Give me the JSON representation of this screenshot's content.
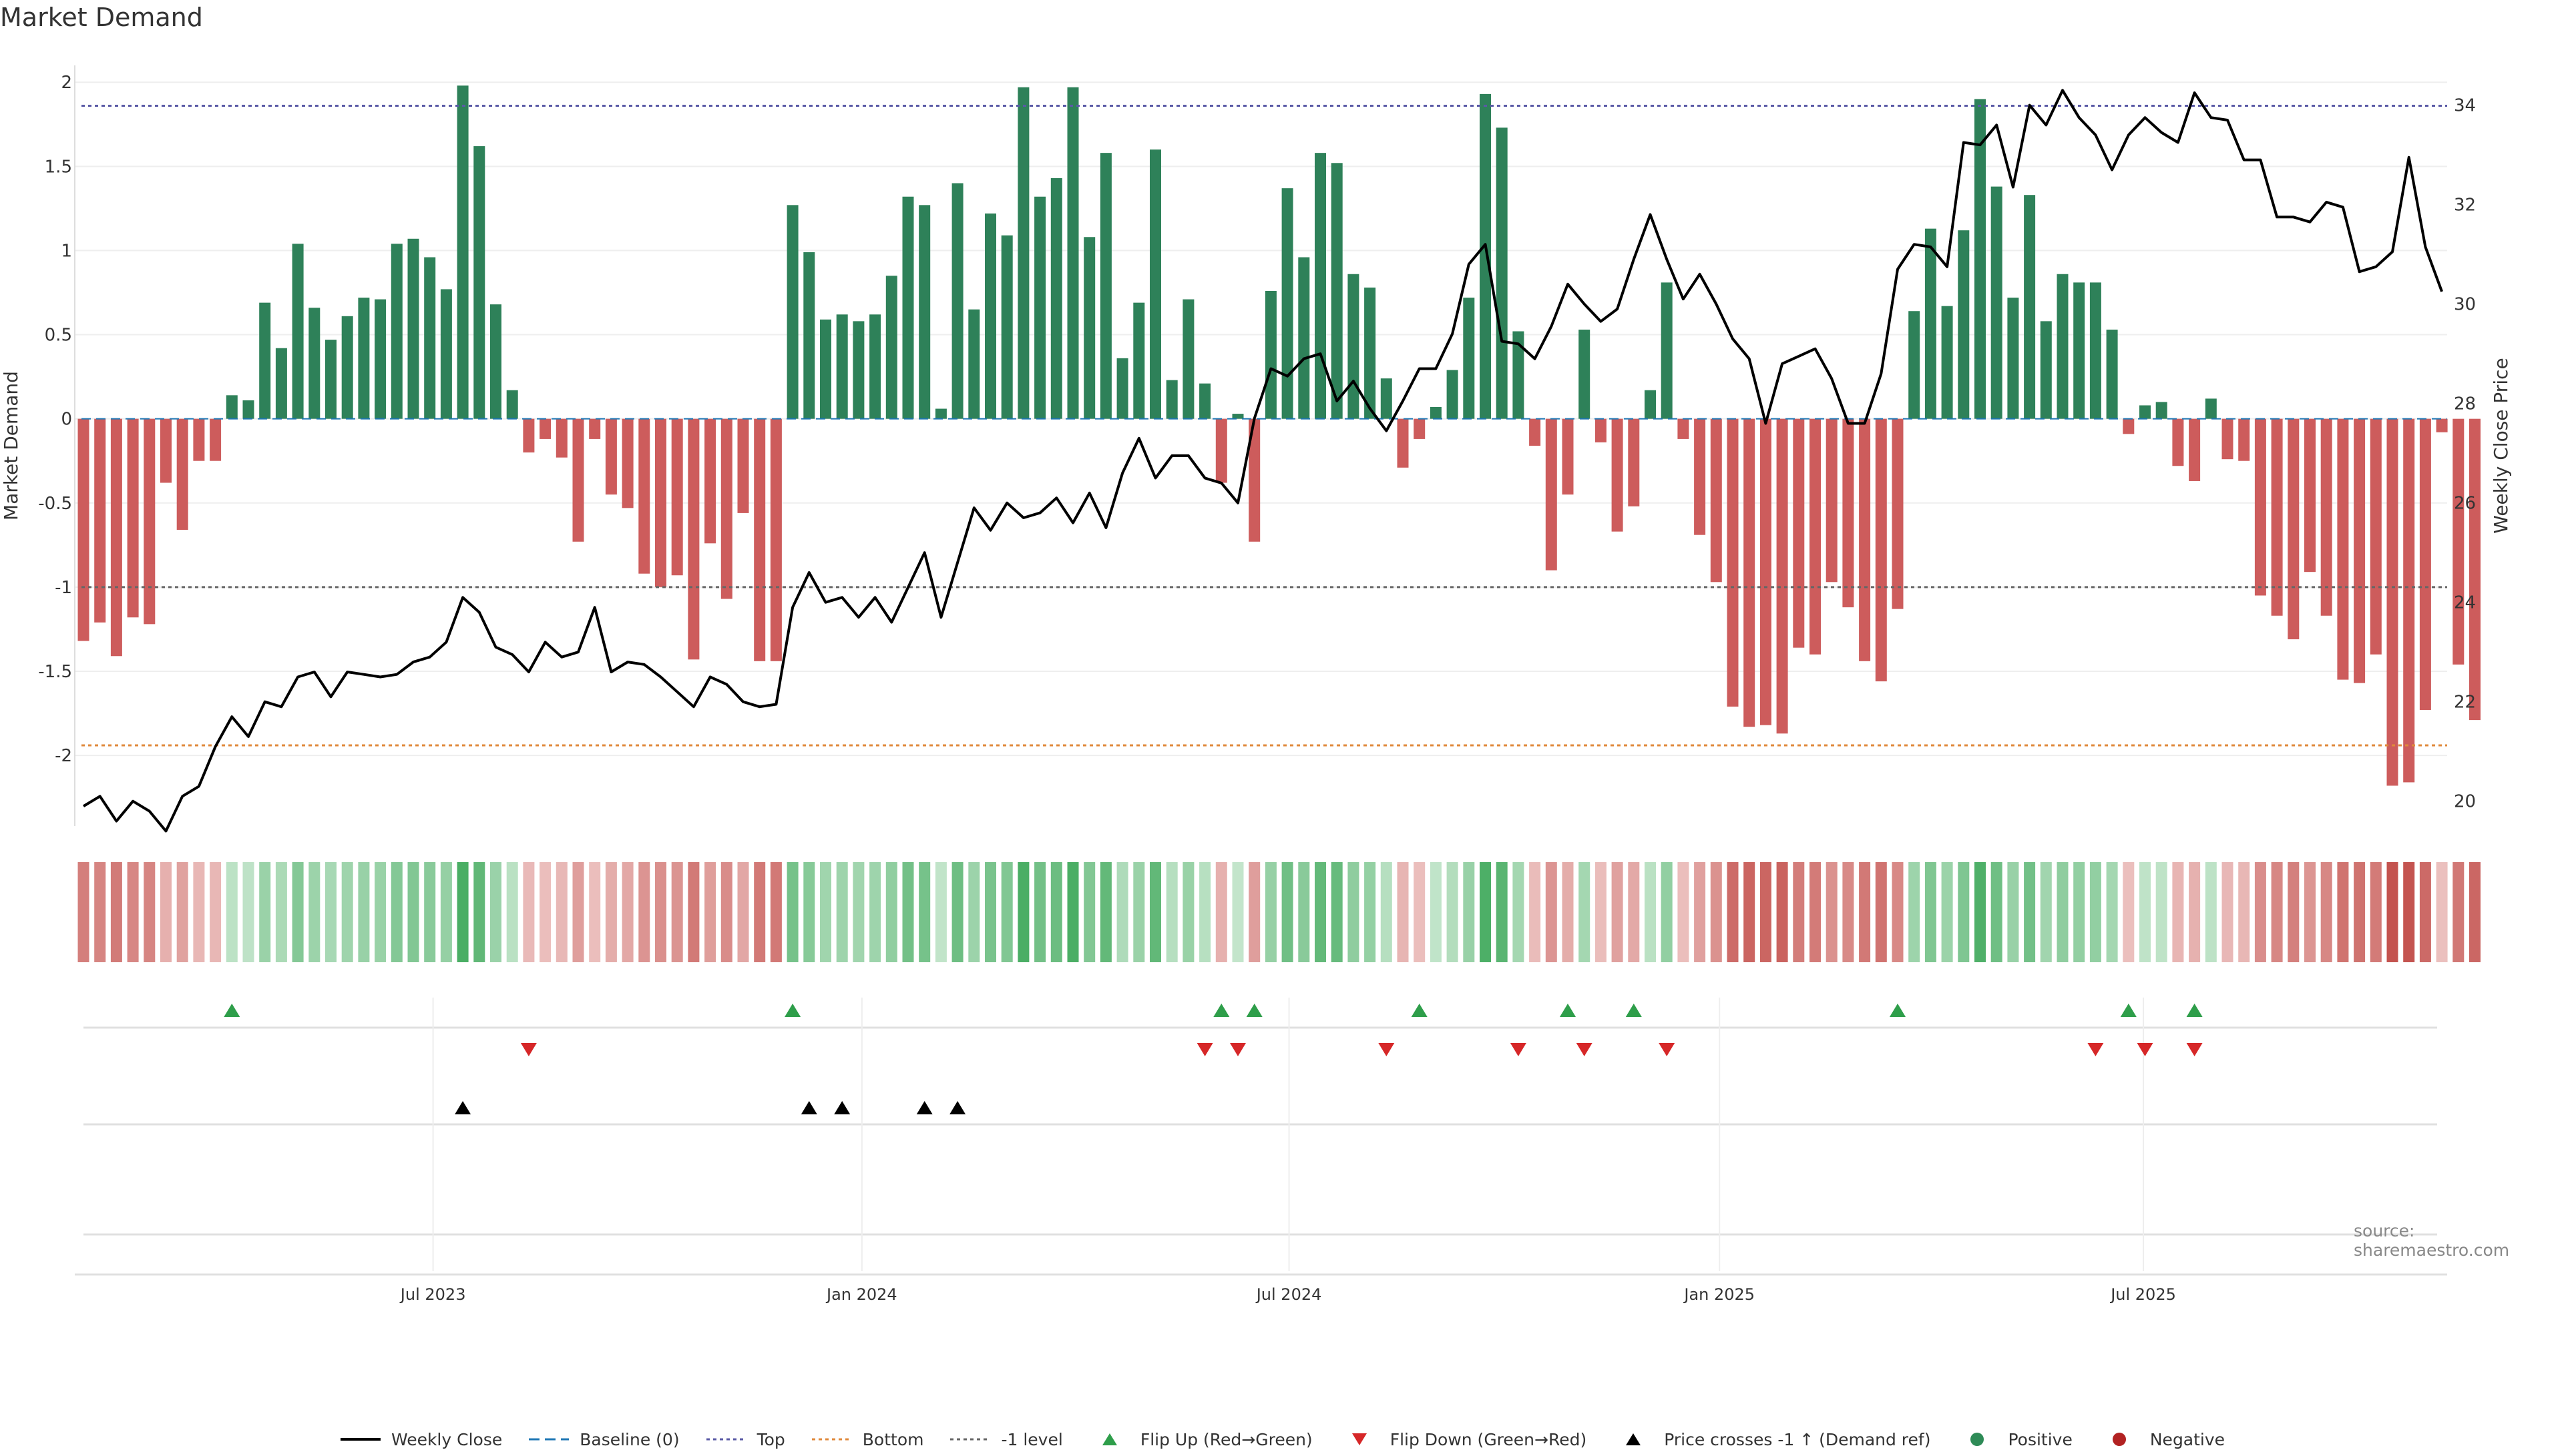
{
  "chart_data": {
    "type": "bar",
    "title": "Market Demand",
    "ylabel": "Market Demand",
    "y2label": "Weekly Close Price",
    "ylim": [
      -2.42,
      2.1
    ],
    "y2lim": [
      19.5,
      34.8
    ],
    "yticks": [
      -2,
      -1.5,
      -1,
      -0.5,
      0,
      0.5,
      1,
      1.5,
      2
    ],
    "y2ticks": [
      20,
      22,
      24,
      26,
      28,
      30,
      32,
      34
    ],
    "reference_lines": {
      "top": 1.86,
      "bottom": -1.94,
      "minus1": -1.0,
      "baseline": 0
    },
    "x_tick_labels": [
      {
        "label": "Jul 2023",
        "index": 21.2
      },
      {
        "label": "Jan 2024",
        "index": 47.2
      },
      {
        "label": "Jul 2024",
        "index": 73.1
      },
      {
        "label": "Jan 2025",
        "index": 99.2
      },
      {
        "label": "Jul 2025",
        "index": 124.9
      }
    ],
    "series": [
      {
        "name": "Market Demand",
        "values": [
          -1.32,
          -1.21,
          -1.41,
          -1.18,
          -1.22,
          -0.38,
          -0.66,
          -0.25,
          -0.25,
          0.14,
          0.11,
          0.69,
          0.42,
          1.04,
          0.66,
          0.47,
          0.61,
          0.72,
          0.71,
          1.04,
          1.07,
          0.96,
          0.77,
          1.98,
          1.62,
          0.68,
          0.17,
          -0.2,
          -0.12,
          -0.23,
          -0.73,
          -0.12,
          -0.45,
          -0.53,
          -0.92,
          -1.0,
          -0.93,
          -1.43,
          -0.74,
          -1.07,
          -0.56,
          -1.44,
          -1.44,
          1.27,
          0.99,
          0.59,
          0.62,
          0.58,
          0.62,
          0.85,
          1.32,
          1.27,
          0.06,
          1.4,
          0.65,
          1.22,
          1.09,
          1.97,
          1.32,
          1.43,
          1.97,
          1.08,
          1.58,
          0.36,
          0.69,
          1.6,
          0.23,
          0.71,
          0.21,
          -0.38,
          0.03,
          -0.73,
          0.76,
          1.37,
          0.96,
          1.58,
          1.52,
          0.86,
          0.78,
          0.24,
          -0.29,
          -0.12,
          0.07,
          0.29,
          0.72,
          1.93,
          1.73,
          0.52,
          -0.16,
          -0.9,
          -0.45,
          0.53,
          -0.14,
          -0.67,
          -0.52,
          0.17,
          0.81,
          -0.12,
          -0.69,
          -0.97,
          -1.71,
          -1.83,
          -1.82,
          -1.87,
          -1.36,
          -1.4,
          -0.97,
          -1.12,
          -1.44,
          -1.56,
          -1.13,
          0.64,
          1.13,
          0.67,
          1.12,
          1.9,
          1.38,
          0.72,
          1.33,
          0.58,
          0.86,
          0.81,
          0.81,
          0.53,
          -0.09,
          0.08,
          0.1,
          -0.28,
          -0.37,
          0.12,
          -0.24,
          -0.25,
          -1.05,
          -1.17,
          -1.31,
          -0.91,
          -1.17,
          -1.55,
          -1.57,
          -1.4,
          -2.18,
          -2.16,
          -1.73,
          -0.08,
          -1.46,
          -1.79
        ]
      },
      {
        "name": "Weekly Close",
        "values": [
          19.9,
          20.1,
          19.6,
          20.0,
          19.8,
          19.4,
          20.1,
          20.3,
          21.1,
          21.7,
          21.3,
          22.0,
          21.9,
          22.5,
          22.6,
          22.1,
          22.6,
          22.55,
          22.5,
          22.55,
          22.8,
          22.9,
          23.2,
          24.1,
          23.8,
          23.1,
          22.95,
          22.6,
          23.2,
          22.9,
          23.0,
          23.9,
          22.6,
          22.8,
          22.75,
          22.5,
          22.2,
          21.9,
          22.5,
          22.35,
          22.0,
          21.9,
          21.95,
          23.9,
          24.6,
          24.0,
          24.1,
          23.7,
          24.1,
          23.6,
          24.3,
          25.0,
          23.7,
          24.8,
          25.9,
          25.45,
          26.0,
          25.7,
          25.8,
          26.1,
          25.6,
          26.2,
          25.5,
          26.6,
          27.3,
          26.5,
          26.95,
          26.95,
          26.5,
          26.4,
          26.0,
          27.7,
          28.7,
          28.55,
          28.9,
          29.0,
          28.05,
          28.45,
          27.9,
          27.45,
          28.05,
          28.7,
          28.7,
          29.4,
          30.8,
          31.2,
          29.25,
          29.2,
          28.9,
          29.55,
          30.4,
          30.0,
          29.65,
          29.9,
          30.9,
          31.8,
          30.9,
          30.1,
          30.6,
          30.0,
          29.3,
          28.9,
          27.6,
          28.8,
          28.95,
          29.1,
          28.5,
          27.6,
          27.6,
          28.6,
          30.7,
          31.2,
          31.15,
          30.75,
          33.25,
          33.2,
          33.6,
          32.35,
          34.0,
          33.6,
          34.3,
          33.75,
          33.4,
          32.7,
          33.4,
          33.75,
          33.45,
          33.25,
          34.25,
          33.75,
          33.7,
          32.9,
          32.9,
          31.75,
          31.75,
          31.65,
          32.05,
          31.95,
          30.65,
          30.75,
          31.05,
          32.95,
          31.15,
          30.25
        ]
      }
    ],
    "flip_up_indices": [
      9,
      43,
      69,
      71,
      81,
      90,
      94,
      110,
      124,
      128
    ],
    "flip_down_indices": [
      27,
      68,
      70,
      79,
      87,
      91,
      96,
      122,
      125,
      128
    ],
    "price_cross_indices": [
      23,
      44,
      46,
      51,
      53
    ]
  },
  "legend": [
    {
      "label": "Weekly Close",
      "kind": "line",
      "color": "#000000"
    },
    {
      "label": "Baseline (0)",
      "kind": "dash",
      "color": "#1f77b4"
    },
    {
      "label": "Top",
      "kind": "dot",
      "color": "#5a5aa6"
    },
    {
      "label": "Bottom",
      "kind": "dot",
      "color": "#e08a3c"
    },
    {
      "label": "-1 level",
      "kind": "dot",
      "color": "#666666"
    },
    {
      "label": "Flip Up (Red→Green)",
      "kind": "tri-up",
      "color": "#2e9e4a"
    },
    {
      "label": "Flip Down (Green→Red)",
      "kind": "tri-down",
      "color": "#d62728"
    },
    {
      "label": "Price crosses -1 ↑ (Demand ref)",
      "kind": "tri-up",
      "color": "#000000"
    },
    {
      "label": "Positive",
      "kind": "circle",
      "color": "#2e8b57"
    },
    {
      "label": "Negative",
      "kind": "circle",
      "color": "#b22222"
    }
  ],
  "source": "source: sharemaestro.com",
  "colors": {
    "positive": "#2e8159",
    "negative": "#cd5c5c",
    "flip_up": "#2e9e4a",
    "flip_down": "#d62728",
    "price_line": "#000000"
  }
}
